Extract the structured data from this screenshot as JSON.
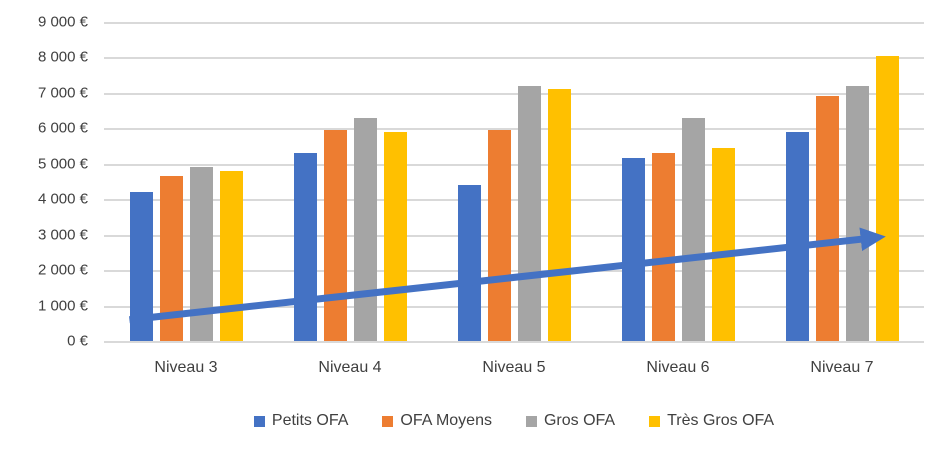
{
  "chart_data": {
    "type": "bar",
    "title": "",
    "xlabel": "",
    "ylabel": "",
    "categories": [
      "Niveau 3",
      "Niveau 4",
      "Niveau 5",
      "Niveau 6",
      "Niveau 7"
    ],
    "series": [
      {
        "name": "Petits OFA",
        "color": "#4472C4",
        "values": [
          4200,
          5300,
          4400,
          5150,
          5900
        ]
      },
      {
        "name": "OFA Moyens",
        "color": "#ED7D31",
        "values": [
          4650,
          5950,
          5950,
          5300,
          6900
        ]
      },
      {
        "name": "Gros OFA",
        "color": "#A5A5A5",
        "values": [
          4900,
          6300,
          7200,
          6300,
          7200
        ]
      },
      {
        "name": "Très Gros OFA",
        "color": "#FFC000",
        "values": [
          4800,
          5900,
          7100,
          5450,
          8050
        ]
      }
    ],
    "y_axis": {
      "min": 0,
      "max": 9000,
      "step": 1000,
      "tick_labels": [
        "0 €",
        "1 000 €",
        "2 000 €",
        "3 000 €",
        "4 000 €",
        "5 000 €",
        "6 000 €",
        "7 000 €",
        "8 000 €",
        "9 000 €"
      ]
    },
    "grid": true,
    "gridline_color": "#D9D9D9",
    "legend": {
      "position": "bottom",
      "entries": [
        "Petits OFA",
        "OFA Moyens",
        "Gros OFA",
        "Très Gros OFA"
      ]
    },
    "trend_arrow": {
      "color": "#4472C4",
      "start_value": 600,
      "end_value": 2950,
      "start_frac": 0.031,
      "end_frac": 0.954
    },
    "text_color": "#404040"
  }
}
